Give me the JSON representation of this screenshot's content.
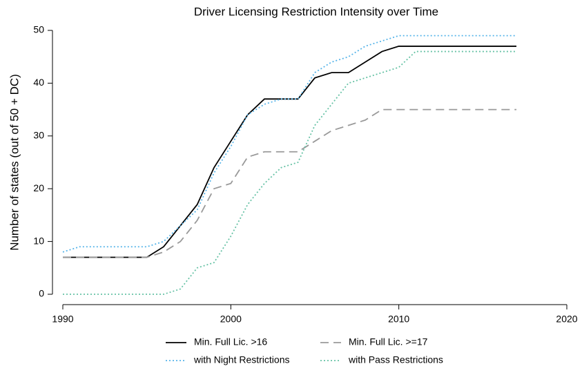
{
  "chart_data": {
    "type": "line",
    "title": "Driver Licensing Restriction Intensity over Time",
    "y_label": "Number of states (out of 50 + DC)",
    "x": [
      1990,
      1991,
      1992,
      1993,
      1994,
      1995,
      1996,
      1997,
      1998,
      1999,
      2000,
      2001,
      2002,
      2003,
      2004,
      2005,
      2006,
      2007,
      2008,
      2009,
      2010,
      2011,
      2012,
      2013,
      2014,
      2015,
      2016,
      2017
    ],
    "series": [
      {
        "name": "Min. Full Lic. >16",
        "color": "#000000",
        "style": "solid",
        "values": [
          7,
          7,
          7,
          7,
          7,
          7,
          9,
          13,
          17,
          24,
          29,
          34,
          37,
          37,
          37,
          41,
          42,
          42,
          44,
          46,
          47,
          47,
          47,
          47,
          47,
          47,
          47,
          47
        ]
      },
      {
        "name": "with Night Restrictions",
        "color": "#56b4e9",
        "style": "dotted",
        "values": [
          8,
          9,
          9,
          9,
          9,
          9,
          10,
          13,
          16,
          23,
          28,
          34,
          36,
          37,
          37,
          42,
          44,
          45,
          47,
          48,
          49,
          49,
          49,
          49,
          49,
          49,
          49,
          49
        ]
      },
      {
        "name": "Min. Full Lic. >=17",
        "color": "#999999",
        "style": "dashed",
        "values": [
          7,
          7,
          7,
          7,
          7,
          7,
          8,
          10,
          14,
          20,
          21,
          26,
          27,
          27,
          27,
          29,
          31,
          32,
          33,
          35,
          35,
          35,
          35,
          35,
          35,
          35,
          35,
          35
        ]
      },
      {
        "name": "with Pass Restrictions",
        "color": "#66c2a5",
        "style": "dotted",
        "values": [
          0,
          0,
          0,
          0,
          0,
          0,
          0,
          1,
          5,
          6,
          11,
          17,
          21,
          24,
          25,
          32,
          36,
          40,
          41,
          42,
          43,
          46,
          46,
          46,
          46,
          46,
          46,
          46
        ]
      }
    ],
    "xlim": [
      1990,
      2020
    ],
    "xticks": [
      1990,
      2000,
      2010,
      2020
    ],
    "ylim": [
      0,
      50
    ],
    "yticks": [
      0,
      10,
      20,
      30,
      40,
      50
    ],
    "grid": false
  }
}
